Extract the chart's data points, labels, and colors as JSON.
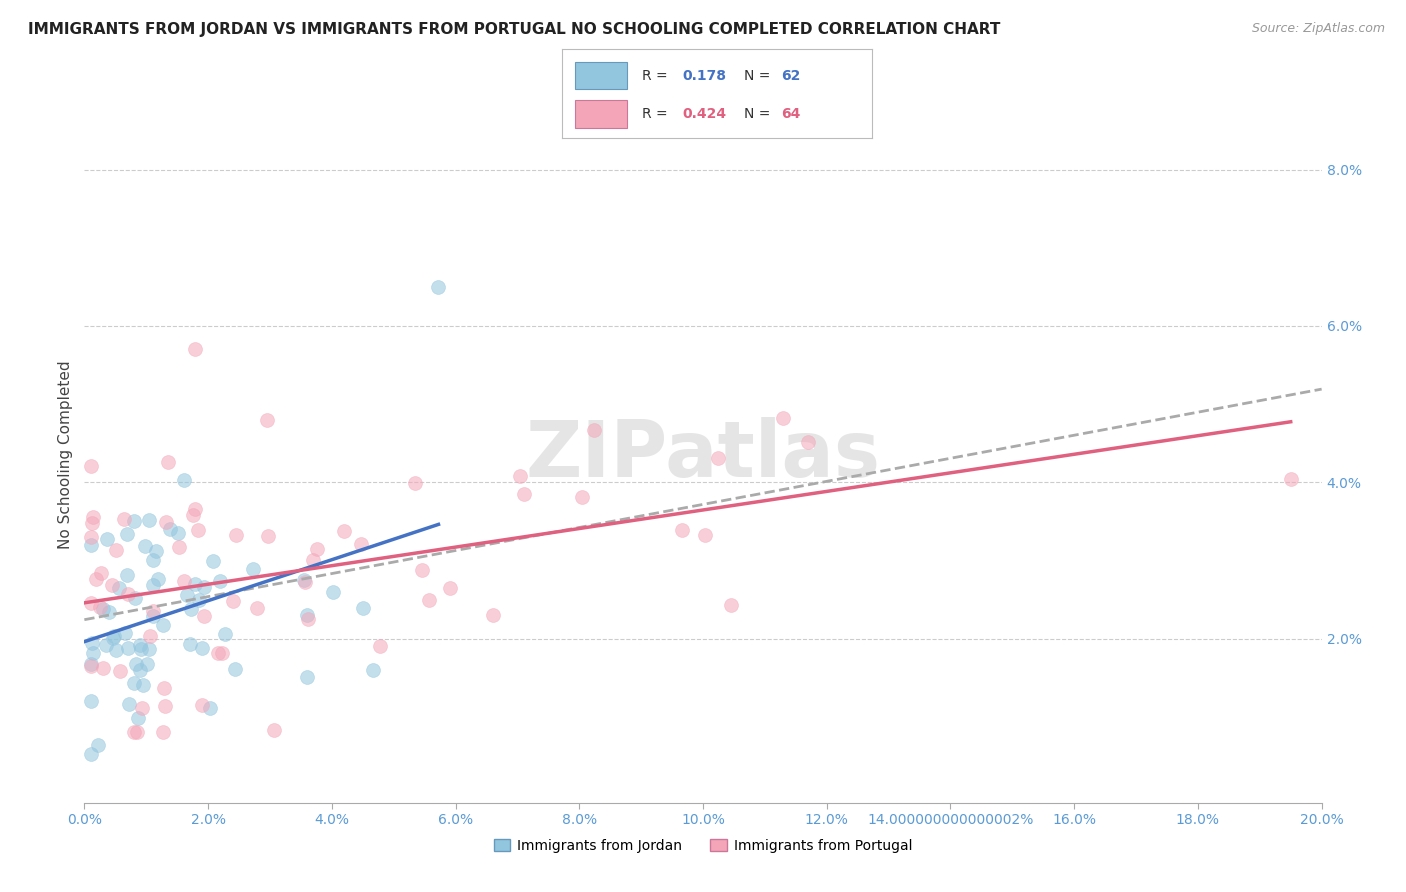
{
  "title": "IMMIGRANTS FROM JORDAN VS IMMIGRANTS FROM PORTUGAL NO SCHOOLING COMPLETED CORRELATION CHART",
  "source": "Source: ZipAtlas.com",
  "ylabel": "No Schooling Completed",
  "R_jordan": "0.178",
  "N_jordan": "62",
  "R_portugal": "0.424",
  "N_portugal": "64",
  "legend_jordan": "Immigrants from Jordan",
  "legend_portugal": "Immigrants from Portugal",
  "color_jordan": "#92C5DE",
  "color_portugal": "#F4A6B8",
  "jordan_line_color": "#4472C4",
  "portugal_line_color": "#E06080",
  "dashed_line_color": "#AAAAAA",
  "xlim": [
    0.0,
    0.2
  ],
  "ylim": [
    -0.001,
    0.088
  ],
  "xtick_vals": [
    0.0,
    0.02,
    0.04,
    0.06,
    0.08,
    0.1,
    0.12,
    0.14,
    0.16,
    0.18,
    0.2
  ],
  "ytick_vals": [
    0.02,
    0.04,
    0.06,
    0.08
  ],
  "marker_size": 100,
  "alpha": 0.55,
  "background_color": "#FFFFFF",
  "grid_color": "#CCCCCC",
  "tick_color": "#5B9BD5",
  "title_fontsize": 11,
  "tick_fontsize": 10,
  "label_fontsize": 11,
  "legend_text_color": "#333333",
  "legend_val_color_jordan": "#4472C4",
  "legend_val_color_portugal": "#E06080",
  "watermark": "ZIPatlas"
}
